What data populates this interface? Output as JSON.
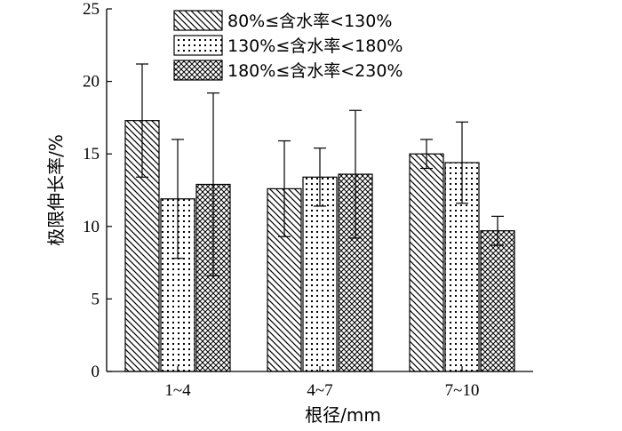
{
  "chart_data": {
    "type": "bar",
    "xlabel": "根径/mm",
    "ylabel": "极限伸长率/%",
    "categories": [
      "1~4",
      "4~7",
      "7~10"
    ],
    "ylim": [
      0,
      25
    ],
    "yticks": [
      0,
      5,
      10,
      15,
      20,
      25
    ],
    "legend_position": "top",
    "grid": false,
    "series": [
      {
        "name": "80%≤含水率<130%",
        "pattern": "diagonal-hatch",
        "values": [
          17.3,
          12.6,
          15.0
        ],
        "error": [
          3.9,
          3.3,
          1.0
        ]
      },
      {
        "name": "130%≤含水率<180%",
        "pattern": "dots",
        "values": [
          11.9,
          13.4,
          14.4
        ],
        "error": [
          4.1,
          2.0,
          2.8
        ]
      },
      {
        "name": "180%≤含水率<230%",
        "pattern": "crosshatch",
        "values": [
          12.9,
          13.6,
          9.7
        ],
        "error": [
          6.3,
          4.4,
          1.0
        ]
      }
    ]
  }
}
